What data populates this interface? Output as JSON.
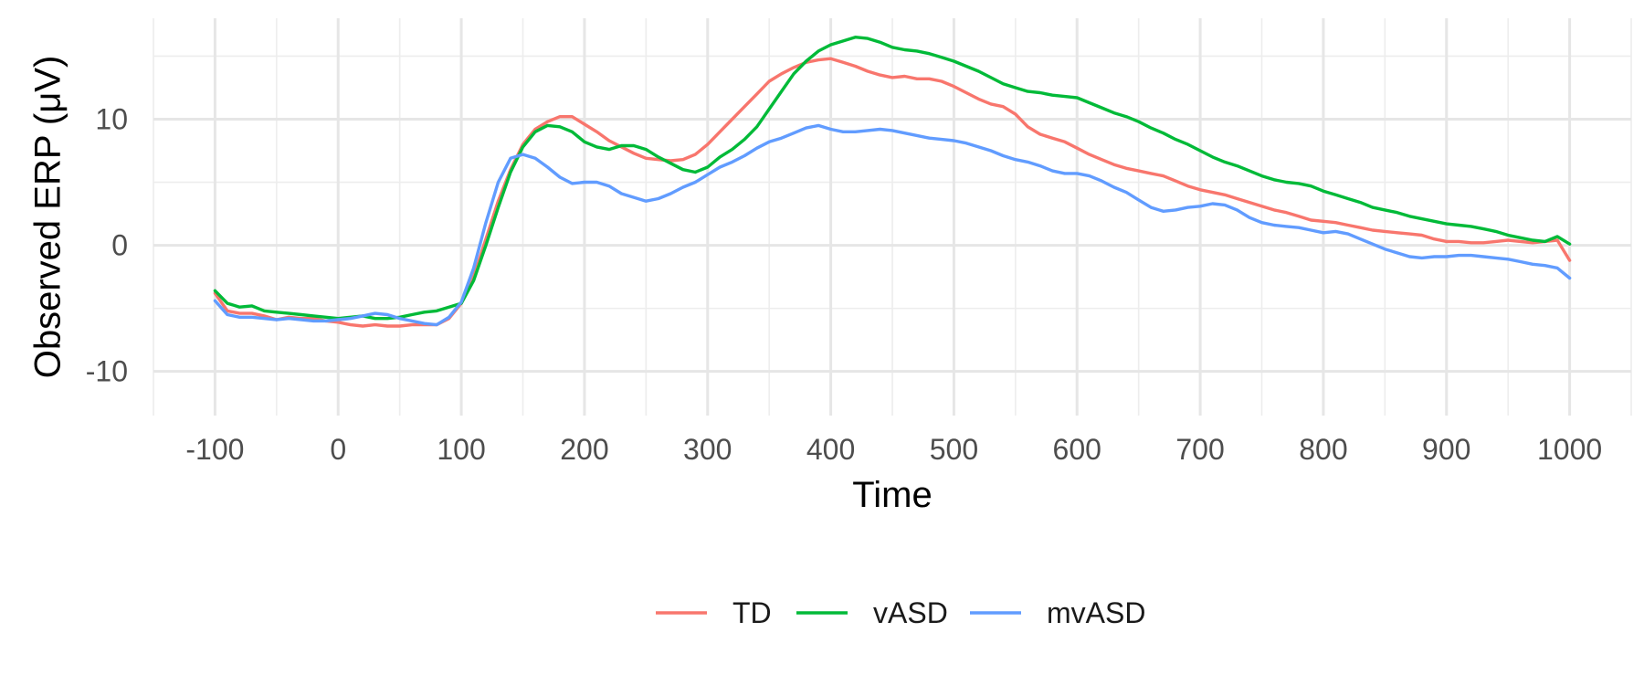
{
  "chart_data": {
    "type": "line",
    "title": "",
    "xlabel": "Time",
    "ylabel": "Observed ERP (μV)",
    "xlim": [
      -150,
      1050
    ],
    "ylim": [
      -13.5,
      18
    ],
    "x_major_ticks": [
      -100,
      0,
      100,
      200,
      300,
      400,
      500,
      600,
      700,
      800,
      900,
      1000
    ],
    "x_tick_labels": [
      "-100",
      "0",
      "100",
      "200",
      "300",
      "400",
      "500",
      "600",
      "700",
      "800",
      "900",
      "1000"
    ],
    "x_minor_ticks": [
      -150,
      -50,
      50,
      150,
      250,
      350,
      450,
      550,
      650,
      750,
      850,
      950,
      1050
    ],
    "y_major_ticks": [
      -10,
      0,
      10
    ],
    "y_tick_labels": [
      "-10",
      "0",
      "10"
    ],
    "y_minor_ticks": [
      -5,
      5,
      15
    ],
    "grid": true,
    "legend_position": "bottom",
    "series": [
      {
        "name": "TD",
        "color": "#F8766D",
        "x": [
          -100,
          -90,
          -80,
          -70,
          -60,
          -50,
          -40,
          -30,
          -20,
          -10,
          0,
          10,
          20,
          30,
          40,
          50,
          60,
          70,
          80,
          90,
          100,
          110,
          120,
          130,
          140,
          150,
          160,
          170,
          180,
          190,
          200,
          210,
          220,
          230,
          240,
          250,
          260,
          270,
          280,
          290,
          300,
          310,
          320,
          330,
          340,
          350,
          360,
          370,
          380,
          390,
          400,
          410,
          420,
          430,
          440,
          450,
          460,
          470,
          480,
          490,
          500,
          510,
          520,
          530,
          540,
          550,
          560,
          570,
          580,
          590,
          600,
          610,
          620,
          630,
          640,
          650,
          660,
          670,
          680,
          690,
          700,
          710,
          720,
          730,
          740,
          750,
          760,
          770,
          780,
          790,
          800,
          810,
          820,
          830,
          840,
          850,
          860,
          870,
          880,
          890,
          900,
          910,
          920,
          930,
          940,
          950,
          960,
          970,
          980,
          990,
          1000
        ],
        "values": [
          -3.8,
          -5.2,
          -5.4,
          -5.4,
          -5.6,
          -5.9,
          -5.7,
          -5.8,
          -5.8,
          -6.0,
          -6.1,
          -6.3,
          -6.4,
          -6.3,
          -6.4,
          -6.4,
          -6.3,
          -6.3,
          -6.3,
          -5.8,
          -4.6,
          -2.5,
          0.5,
          3.5,
          6.0,
          8.0,
          9.2,
          9.8,
          10.2,
          10.2,
          9.6,
          9.0,
          8.3,
          7.8,
          7.3,
          6.9,
          6.8,
          6.7,
          6.8,
          7.2,
          8.0,
          9.0,
          10.0,
          11.0,
          12.0,
          13.0,
          13.6,
          14.1,
          14.5,
          14.7,
          14.8,
          14.5,
          14.2,
          13.8,
          13.5,
          13.3,
          13.4,
          13.2,
          13.2,
          13.0,
          12.6,
          12.1,
          11.6,
          11.2,
          11.0,
          10.4,
          9.4,
          8.8,
          8.5,
          8.2,
          7.7,
          7.2,
          6.8,
          6.4,
          6.1,
          5.9,
          5.7,
          5.5,
          5.1,
          4.7,
          4.4,
          4.2,
          4.0,
          3.7,
          3.4,
          3.1,
          2.8,
          2.6,
          2.3,
          2.0,
          1.9,
          1.8,
          1.6,
          1.4,
          1.2,
          1.1,
          1.0,
          0.9,
          0.8,
          0.5,
          0.3,
          0.3,
          0.2,
          0.2,
          0.3,
          0.4,
          0.3,
          0.2,
          0.3,
          0.4,
          -1.2
        ]
      },
      {
        "name": "vASD",
        "color": "#00BA38",
        "x": [
          -100,
          -90,
          -80,
          -70,
          -60,
          -50,
          -40,
          -30,
          -20,
          -10,
          0,
          10,
          20,
          30,
          40,
          50,
          60,
          70,
          80,
          90,
          100,
          110,
          120,
          130,
          140,
          150,
          160,
          170,
          180,
          190,
          200,
          210,
          220,
          230,
          240,
          250,
          260,
          270,
          280,
          290,
          300,
          310,
          320,
          330,
          340,
          350,
          360,
          370,
          380,
          390,
          400,
          410,
          420,
          430,
          440,
          450,
          460,
          470,
          480,
          490,
          500,
          510,
          520,
          530,
          540,
          550,
          560,
          570,
          580,
          590,
          600,
          610,
          620,
          630,
          640,
          650,
          660,
          670,
          680,
          690,
          700,
          710,
          720,
          730,
          740,
          750,
          760,
          770,
          780,
          790,
          800,
          810,
          820,
          830,
          840,
          850,
          860,
          870,
          880,
          890,
          900,
          910,
          920,
          930,
          940,
          950,
          960,
          970,
          980,
          990,
          1000
        ],
        "values": [
          -3.6,
          -4.6,
          -4.9,
          -4.8,
          -5.2,
          -5.3,
          -5.4,
          -5.5,
          -5.6,
          -5.7,
          -5.8,
          -5.7,
          -5.6,
          -5.8,
          -5.8,
          -5.7,
          -5.5,
          -5.3,
          -5.2,
          -4.9,
          -4.6,
          -2.8,
          0.0,
          3.0,
          5.8,
          7.8,
          9.0,
          9.5,
          9.4,
          9.0,
          8.2,
          7.8,
          7.6,
          7.9,
          7.9,
          7.6,
          7.0,
          6.5,
          6.0,
          5.8,
          6.2,
          7.0,
          7.6,
          8.4,
          9.4,
          10.8,
          12.2,
          13.6,
          14.6,
          15.4,
          15.9,
          16.2,
          16.5,
          16.4,
          16.1,
          15.7,
          15.5,
          15.4,
          15.2,
          14.9,
          14.6,
          14.2,
          13.8,
          13.3,
          12.8,
          12.5,
          12.2,
          12.1,
          11.9,
          11.8,
          11.7,
          11.3,
          10.9,
          10.5,
          10.2,
          9.8,
          9.3,
          8.9,
          8.4,
          8.0,
          7.5,
          7.0,
          6.6,
          6.3,
          5.9,
          5.5,
          5.2,
          5.0,
          4.9,
          4.7,
          4.3,
          4.0,
          3.7,
          3.4,
          3.0,
          2.8,
          2.6,
          2.3,
          2.1,
          1.9,
          1.7,
          1.6,
          1.5,
          1.3,
          1.1,
          0.8,
          0.6,
          0.4,
          0.3,
          0.7,
          0.1
        ]
      },
      {
        "name": "mvASD",
        "color": "#619CFF",
        "x": [
          -100,
          -90,
          -80,
          -70,
          -60,
          -50,
          -40,
          -30,
          -20,
          -10,
          0,
          10,
          20,
          30,
          40,
          50,
          60,
          70,
          80,
          90,
          100,
          110,
          120,
          130,
          140,
          150,
          160,
          170,
          180,
          190,
          200,
          210,
          220,
          230,
          240,
          250,
          260,
          270,
          280,
          290,
          300,
          310,
          320,
          330,
          340,
          350,
          360,
          370,
          380,
          390,
          400,
          410,
          420,
          430,
          440,
          450,
          460,
          470,
          480,
          490,
          500,
          510,
          520,
          530,
          540,
          550,
          560,
          570,
          580,
          590,
          600,
          610,
          620,
          630,
          640,
          650,
          660,
          670,
          680,
          690,
          700,
          710,
          720,
          730,
          740,
          750,
          760,
          770,
          780,
          790,
          800,
          810,
          820,
          830,
          840,
          850,
          860,
          870,
          880,
          890,
          900,
          910,
          920,
          930,
          940,
          950,
          960,
          970,
          980,
          990,
          1000
        ],
        "values": [
          -4.4,
          -5.5,
          -5.7,
          -5.7,
          -5.8,
          -5.9,
          -5.8,
          -5.9,
          -6.0,
          -6.0,
          -5.9,
          -5.8,
          -5.6,
          -5.4,
          -5.5,
          -5.8,
          -6.0,
          -6.2,
          -6.3,
          -5.7,
          -4.5,
          -1.8,
          1.8,
          5.0,
          6.9,
          7.2,
          6.9,
          6.2,
          5.4,
          4.9,
          5.0,
          5.0,
          4.7,
          4.1,
          3.8,
          3.5,
          3.7,
          4.1,
          4.6,
          5.0,
          5.6,
          6.2,
          6.6,
          7.1,
          7.7,
          8.2,
          8.5,
          8.9,
          9.3,
          9.5,
          9.2,
          9.0,
          9.0,
          9.1,
          9.2,
          9.1,
          8.9,
          8.7,
          8.5,
          8.4,
          8.3,
          8.1,
          7.8,
          7.5,
          7.1,
          6.8,
          6.6,
          6.3,
          5.9,
          5.7,
          5.7,
          5.5,
          5.1,
          4.6,
          4.2,
          3.6,
          3.0,
          2.7,
          2.8,
          3.0,
          3.1,
          3.3,
          3.2,
          2.8,
          2.2,
          1.8,
          1.6,
          1.5,
          1.4,
          1.2,
          1.0,
          1.1,
          0.9,
          0.5,
          0.1,
          -0.3,
          -0.6,
          -0.9,
          -1.0,
          -0.9,
          -0.9,
          -0.8,
          -0.8,
          -0.9,
          -1.0,
          -1.1,
          -1.3,
          -1.5,
          -1.6,
          -1.8,
          -2.6
        ]
      }
    ]
  }
}
